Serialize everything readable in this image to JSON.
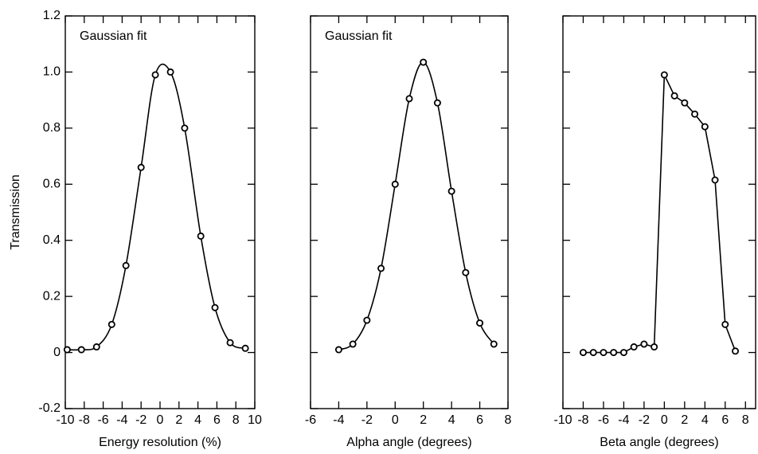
{
  "chart_data": [
    {
      "type": "line",
      "annotation": "Gaussian fit",
      "xlabel": "Energy resolution (%)",
      "ylabel": "Transmission",
      "smooth": true,
      "color": "#000000",
      "ytick_labels": true,
      "x": [
        -9.8,
        -8.3,
        -6.7,
        -5.1,
        -3.6,
        -2.0,
        -0.5,
        1.1,
        2.6,
        4.3,
        5.8,
        7.4,
        9.0
      ],
      "values": [
        0.01,
        0.01,
        0.02,
        0.1,
        0.31,
        0.66,
        0.99,
        1.0,
        0.8,
        0.415,
        0.16,
        0.035,
        0.015
      ],
      "xlim": [
        -10,
        10
      ],
      "xticks": [
        -10,
        -8,
        -6,
        -4,
        -2,
        0,
        2,
        4,
        6,
        8,
        10
      ],
      "ylim": [
        -0.2,
        1.2
      ],
      "yticks": [
        -0.2,
        0,
        0.2,
        0.4,
        0.6,
        0.8,
        {
          "value": 1,
          "label": "1.0"
        },
        1.2
      ]
    },
    {
      "type": "line",
      "annotation": "Gaussian fit",
      "xlabel": "Alpha angle (degrees)",
      "smooth": true,
      "color": "#000000",
      "ytick_labels": false,
      "x": [
        -4,
        -3,
        -2,
        -1,
        0,
        1,
        2,
        3,
        4,
        5,
        6,
        7
      ],
      "values": [
        0.01,
        0.03,
        0.115,
        0.3,
        0.6,
        0.905,
        1.035,
        0.89,
        0.575,
        0.285,
        0.105,
        0.03
      ],
      "xlim": [
        -6,
        8
      ],
      "xticks": [
        -6,
        -4,
        -2,
        0,
        2,
        4,
        6,
        8
      ],
      "ylim": [
        -0.2,
        1.2
      ],
      "yticks": [
        -0.2,
        0,
        0.2,
        0.4,
        0.6,
        0.8,
        1,
        1.2
      ]
    },
    {
      "type": "line",
      "xlabel": "Beta angle (degrees)",
      "smooth": false,
      "color": "#000000",
      "ytick_labels": false,
      "x": [
        -8,
        -7,
        -6,
        -5,
        -4,
        -3,
        -2,
        -1,
        0,
        1,
        2,
        3,
        4,
        5,
        6,
        7
      ],
      "values": [
        0,
        0,
        0,
        0,
        0,
        0.02,
        0.03,
        0.02,
        0.99,
        0.915,
        0.89,
        0.85,
        0.805,
        0.615,
        0.1,
        0.005
      ],
      "xlim": [
        -10,
        9
      ],
      "xticks": [
        -10,
        -8,
        -6,
        -4,
        -2,
        0,
        2,
        4,
        6,
        8
      ],
      "ylim": [
        -0.2,
        1.2
      ],
      "yticks": [
        -0.2,
        0,
        0.2,
        0.4,
        0.6,
        0.8,
        1,
        1.2
      ]
    }
  ]
}
